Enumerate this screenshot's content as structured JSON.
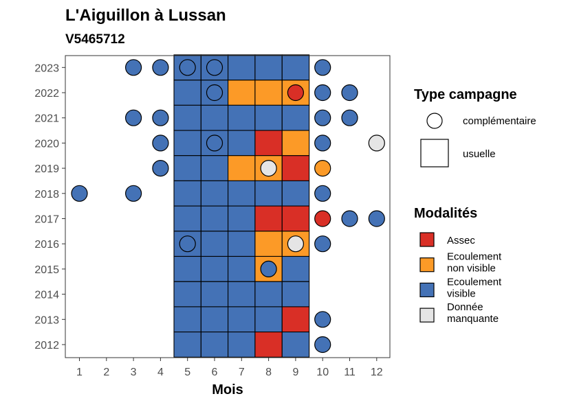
{
  "header": {
    "title": "L'Aiguillon à Lussan",
    "subtitle": "V5465712"
  },
  "legend": {
    "type_title": "Type campagne",
    "types": [
      {
        "key": "complementaire",
        "label": "complémentaire"
      },
      {
        "key": "usuelle",
        "label": "usuelle"
      }
    ],
    "mod_title": "Modalités",
    "modalites": [
      {
        "key": "A",
        "lines": [
          "Assec"
        ],
        "color": "#d92f26"
      },
      {
        "key": "N",
        "lines": [
          "Ecoulement",
          "non visible"
        ],
        "color": "#fc9a27"
      },
      {
        "key": "V",
        "lines": [
          "Ecoulement",
          "visible"
        ],
        "color": "#4472b6"
      },
      {
        "key": "M",
        "lines": [
          "Donnée",
          "manquante"
        ],
        "color": "#e5e5e5"
      }
    ]
  },
  "chart_data": {
    "type": "heatmap",
    "xlabel": "Mois",
    "ylabel": "",
    "x_ticks": [
      "1",
      "2",
      "3",
      "4",
      "5",
      "6",
      "7",
      "8",
      "9",
      "10",
      "11",
      "12"
    ],
    "y_ticks": [
      "2012",
      "2013",
      "2014",
      "2015",
      "2016",
      "2017",
      "2018",
      "2019",
      "2020",
      "2021",
      "2022",
      "2023"
    ],
    "usuelle_tiles": [
      {
        "year": 2023,
        "months": [
          "V",
          "V",
          "V",
          "V",
          "V"
        ]
      },
      {
        "year": 2022,
        "months": [
          "V",
          "V",
          "N",
          "N",
          "N"
        ]
      },
      {
        "year": 2021,
        "months": [
          "V",
          "V",
          "V",
          "V",
          "V"
        ]
      },
      {
        "year": 2020,
        "months": [
          "V",
          "V",
          "V",
          "A",
          "N"
        ]
      },
      {
        "year": 2019,
        "months": [
          "V",
          "V",
          "N",
          "N",
          "A"
        ]
      },
      {
        "year": 2018,
        "months": [
          "V",
          "V",
          "V",
          "V",
          "V"
        ]
      },
      {
        "year": 2017,
        "months": [
          "V",
          "V",
          "V",
          "A",
          "A"
        ]
      },
      {
        "year": 2016,
        "months": [
          "V",
          "V",
          "V",
          "N",
          "N"
        ]
      },
      {
        "year": 2015,
        "months": [
          "V",
          "V",
          "V",
          "N",
          "V"
        ]
      },
      {
        "year": 2014,
        "months": [
          "V",
          "V",
          "V",
          "V",
          "V"
        ]
      },
      {
        "year": 2013,
        "months": [
          "V",
          "V",
          "V",
          "V",
          "A"
        ]
      },
      {
        "year": 2012,
        "months": [
          "V",
          "V",
          "V",
          "A",
          "V"
        ]
      }
    ],
    "usuelle_first_month": 5,
    "complementaire_points": [
      {
        "year": 2023,
        "month": 3,
        "m": "V"
      },
      {
        "year": 2023,
        "month": 4,
        "m": "V"
      },
      {
        "year": 2023,
        "month": 5,
        "m": "V"
      },
      {
        "year": 2023,
        "month": 6,
        "m": "V"
      },
      {
        "year": 2023,
        "month": 10,
        "m": "V"
      },
      {
        "year": 2022,
        "month": 6,
        "m": "V"
      },
      {
        "year": 2022,
        "month": 9,
        "m": "A"
      },
      {
        "year": 2022,
        "month": 10,
        "m": "V"
      },
      {
        "year": 2022,
        "month": 11,
        "m": "V"
      },
      {
        "year": 2021,
        "month": 3,
        "m": "V"
      },
      {
        "year": 2021,
        "month": 4,
        "m": "V"
      },
      {
        "year": 2021,
        "month": 10,
        "m": "V"
      },
      {
        "year": 2021,
        "month": 11,
        "m": "V"
      },
      {
        "year": 2020,
        "month": 4,
        "m": "V"
      },
      {
        "year": 2020,
        "month": 6,
        "m": "V"
      },
      {
        "year": 2020,
        "month": 10,
        "m": "V"
      },
      {
        "year": 2020,
        "month": 12,
        "m": "M"
      },
      {
        "year": 2019,
        "month": 4,
        "m": "V"
      },
      {
        "year": 2019,
        "month": 8,
        "m": "M"
      },
      {
        "year": 2019,
        "month": 10,
        "m": "N"
      },
      {
        "year": 2018,
        "month": 1,
        "m": "V"
      },
      {
        "year": 2018,
        "month": 3,
        "m": "V"
      },
      {
        "year": 2018,
        "month": 10,
        "m": "V"
      },
      {
        "year": 2017,
        "month": 10,
        "m": "A"
      },
      {
        "year": 2017,
        "month": 11,
        "m": "V"
      },
      {
        "year": 2017,
        "month": 12,
        "m": "V"
      },
      {
        "year": 2016,
        "month": 5,
        "m": "V"
      },
      {
        "year": 2016,
        "month": 9,
        "m": "M"
      },
      {
        "year": 2016,
        "month": 10,
        "m": "V"
      },
      {
        "year": 2015,
        "month": 8,
        "m": "V"
      },
      {
        "year": 2013,
        "month": 10,
        "m": "V"
      },
      {
        "year": 2012,
        "month": 10,
        "m": "V"
      }
    ]
  }
}
